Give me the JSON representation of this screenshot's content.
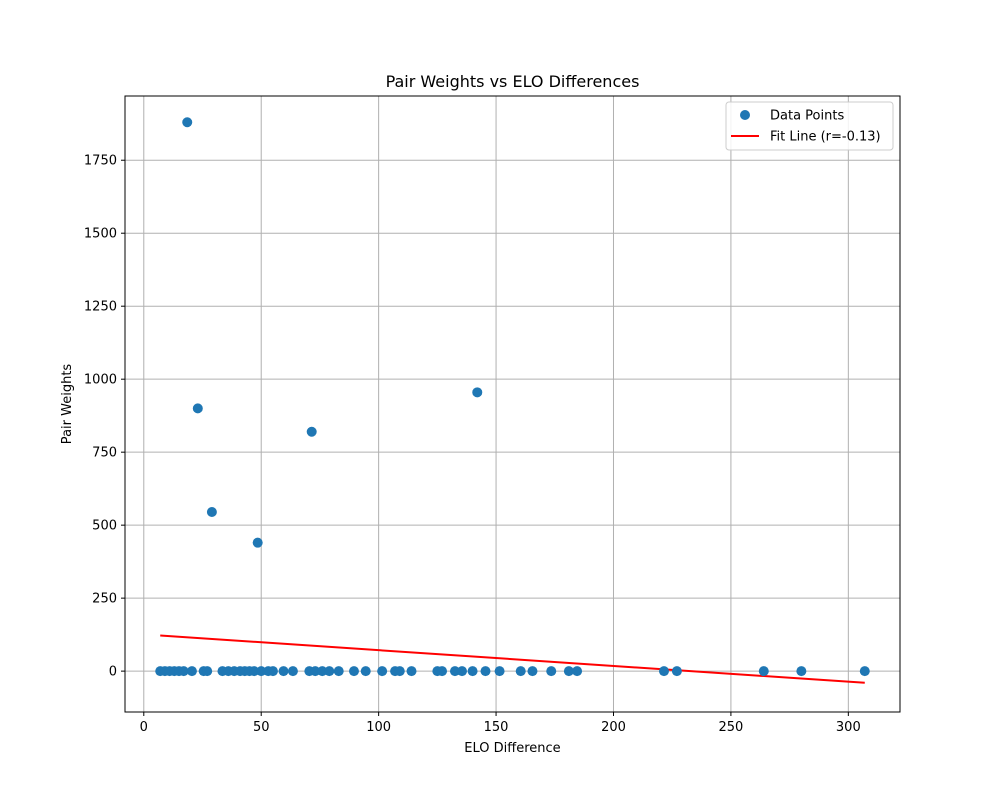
{
  "chart_data": {
    "type": "scatter",
    "title": "Pair Weights vs ELO Differences",
    "xlabel": "ELO Difference",
    "ylabel": "Pair Weights",
    "xlim": [
      -8,
      322
    ],
    "ylim": [
      -140,
      1970
    ],
    "xticks": [
      0,
      50,
      100,
      150,
      200,
      250,
      300
    ],
    "yticks": [
      0,
      250,
      500,
      750,
      1000,
      1250,
      1500,
      1750
    ],
    "grid": true,
    "legend_position": "top-right",
    "series": [
      {
        "name": "Data Points",
        "type": "scatter",
        "color": "#1f77b4",
        "x": [
          18.5,
          23,
          29,
          48.5,
          71.5,
          142,
          7,
          9,
          11,
          13,
          15,
          17,
          20.5,
          25.5,
          27,
          33.5,
          36,
          38.5,
          41,
          43,
          45,
          47,
          50,
          53,
          55,
          59.5,
          63.5,
          70.5,
          73,
          76,
          79,
          83,
          89.5,
          94.5,
          101.5,
          107,
          109,
          114,
          125,
          127,
          132.5,
          135.5,
          140,
          145.5,
          151.5,
          160.5,
          165.5,
          173.5,
          181,
          184.5,
          221.5,
          227,
          264,
          280,
          307
        ],
        "y": [
          1880,
          900,
          545,
          440,
          820,
          955,
          0,
          0,
          0,
          0,
          0,
          0,
          0,
          0,
          0,
          0,
          0,
          0,
          0,
          0,
          0,
          0,
          0,
          0,
          0,
          0,
          0,
          0,
          0,
          0,
          0,
          0,
          0,
          0,
          0,
          0,
          0,
          0,
          0,
          0,
          0,
          0,
          0,
          0,
          0,
          0,
          0,
          0,
          0,
          0,
          0,
          0,
          0,
          0,
          0
        ]
      },
      {
        "name": "Fit Line (r=-0.13)",
        "type": "line",
        "color": "#ff0000",
        "x": [
          7,
          307
        ],
        "y": [
          122,
          -40
        ]
      }
    ]
  }
}
